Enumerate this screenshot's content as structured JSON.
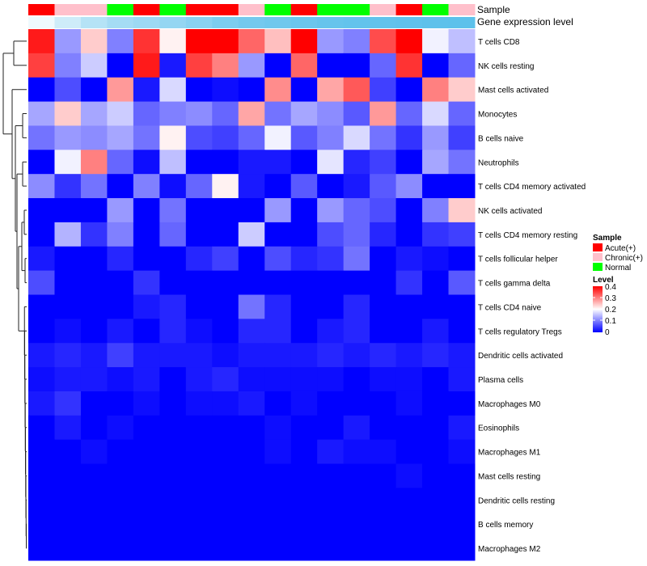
{
  "chart_data": {
    "type": "heatmap",
    "title": "",
    "annotation_tracks": [
      "Sample",
      "Gene expression level"
    ],
    "sample_groups": [
      "Acute(+)",
      "Chronic(+)",
      "Chronic(+)",
      "Normal",
      "Acute(+)",
      "Normal",
      "Acute(+)",
      "Acute(+)",
      "Chronic(+)",
      "Normal",
      "Acute(+)",
      "Normal",
      "Normal",
      "Chronic(+)",
      "Acute(+)",
      "Normal",
      "Chronic(+)"
    ],
    "expression_levels": [
      0.1,
      0.3,
      0.45,
      0.55,
      0.6,
      0.65,
      0.72,
      0.8,
      0.85,
      0.88,
      0.9,
      0.93,
      0.95,
      0.96,
      0.97,
      0.98,
      0.99
    ],
    "rows": [
      "T cells CD8",
      "NK cells resting",
      "Mast cells activated",
      "Monocytes",
      "B cells naive",
      "Neutrophils",
      "T cells CD4 memory activated",
      "NK cells activated",
      "T cells CD4 memory resting",
      "T cells follicular helper",
      "T cells gamma delta",
      "T cells CD4 naive",
      "T cells regulatory  Tregs",
      "Dendritic cells activated",
      "Plasma cells",
      "Macrophages M0",
      "Eosinophils",
      "Macrophages M1",
      "Mast cells resting",
      "Dendritic cells resting",
      "B cells memory",
      "Macrophages M2"
    ],
    "values": [
      [
        0.38,
        0.12,
        0.24,
        0.1,
        0.36,
        0.21,
        0.4,
        0.4,
        0.32,
        0.25,
        0.4,
        0.12,
        0.1,
        0.34,
        0.4,
        0.19,
        0.15
      ],
      [
        0.35,
        0.1,
        0.16,
        0.0,
        0.38,
        0.02,
        0.35,
        0.3,
        0.12,
        0.0,
        0.32,
        0.0,
        0.0,
        0.08,
        0.36,
        0.0,
        0.08
      ],
      [
        0.0,
        0.06,
        0.0,
        0.28,
        0.02,
        0.17,
        0.0,
        0.01,
        0.0,
        0.29,
        0.0,
        0.27,
        0.33,
        0.05,
        0.0,
        0.3,
        0.24
      ],
      [
        0.13,
        0.24,
        0.13,
        0.16,
        0.08,
        0.1,
        0.11,
        0.08,
        0.27,
        0.09,
        0.13,
        0.11,
        0.07,
        0.28,
        0.08,
        0.17,
        0.08
      ],
      [
        0.09,
        0.12,
        0.11,
        0.13,
        0.09,
        0.21,
        0.06,
        0.05,
        0.08,
        0.19,
        0.07,
        0.1,
        0.17,
        0.09,
        0.04,
        0.12,
        0.05
      ],
      [
        0.0,
        0.19,
        0.3,
        0.08,
        0.01,
        0.15,
        0.0,
        0.0,
        0.02,
        0.02,
        0.0,
        0.18,
        0.03,
        0.05,
        0.0,
        0.13,
        0.09
      ],
      [
        0.11,
        0.04,
        0.09,
        0.0,
        0.1,
        0.01,
        0.08,
        0.21,
        0.02,
        0.0,
        0.07,
        0.0,
        0.02,
        0.07,
        0.11,
        0.0,
        0.0
      ],
      [
        0.0,
        0.0,
        0.0,
        0.12,
        0.0,
        0.09,
        0.0,
        0.0,
        0.0,
        0.12,
        0.0,
        0.12,
        0.08,
        0.06,
        0.0,
        0.1,
        0.24
      ],
      [
        0.0,
        0.14,
        0.04,
        0.1,
        0.0,
        0.08,
        0.0,
        0.0,
        0.16,
        0.0,
        0.0,
        0.06,
        0.08,
        0.03,
        0.0,
        0.04,
        0.05
      ],
      [
        0.02,
        0.0,
        0.0,
        0.03,
        0.0,
        0.0,
        0.03,
        0.05,
        0.0,
        0.06,
        0.03,
        0.04,
        0.09,
        0.0,
        0.02,
        0.01,
        0.0
      ],
      [
        0.06,
        0.0,
        0.0,
        0.0,
        0.04,
        0.0,
        0.0,
        0.0,
        0.0,
        0.0,
        0.0,
        0.0,
        0.0,
        0.0,
        0.04,
        0.0,
        0.07
      ],
      [
        0.0,
        0.0,
        0.0,
        0.0,
        0.02,
        0.03,
        0.0,
        0.0,
        0.09,
        0.03,
        0.0,
        0.0,
        0.03,
        0.0,
        0.0,
        0.0,
        0.0
      ],
      [
        0.0,
        0.01,
        0.0,
        0.02,
        0.0,
        0.03,
        0.01,
        0.0,
        0.03,
        0.03,
        0.0,
        0.02,
        0.03,
        0.0,
        0.0,
        0.02,
        0.0
      ],
      [
        0.02,
        0.03,
        0.02,
        0.05,
        0.02,
        0.02,
        0.02,
        0.01,
        0.02,
        0.02,
        0.02,
        0.03,
        0.02,
        0.03,
        0.02,
        0.03,
        0.02
      ],
      [
        0.01,
        0.02,
        0.02,
        0.01,
        0.02,
        0.0,
        0.02,
        0.03,
        0.01,
        0.01,
        0.01,
        0.01,
        0.0,
        0.01,
        0.01,
        0.0,
        0.02
      ],
      [
        0.02,
        0.04,
        0.0,
        0.0,
        0.01,
        0.0,
        0.01,
        0.01,
        0.02,
        0.0,
        0.01,
        0.0,
        0.0,
        0.0,
        0.01,
        0.0,
        0.0
      ],
      [
        0.0,
        0.02,
        0.0,
        0.01,
        0.0,
        0.0,
        0.0,
        0.0,
        0.0,
        0.01,
        0.0,
        0.0,
        0.02,
        0.0,
        0.0,
        0.0,
        0.02
      ],
      [
        0.0,
        0.0,
        0.01,
        0.0,
        0.0,
        0.0,
        0.0,
        0.0,
        0.0,
        0.01,
        0.0,
        0.02,
        0.01,
        0.01,
        0.0,
        0.0,
        0.01
      ],
      [
        0.0,
        0.0,
        0.0,
        0.0,
        0.0,
        0.0,
        0.0,
        0.0,
        0.0,
        0.0,
        0.0,
        0.0,
        0.0,
        0.0,
        0.01,
        0.0,
        0.0
      ],
      [
        0.0,
        0.0,
        0.0,
        0.0,
        0.0,
        0.0,
        0.0,
        0.0,
        0.0,
        0.0,
        0.0,
        0.0,
        0.0,
        0.0,
        0.0,
        0.0,
        0.0
      ],
      [
        0.0,
        0.0,
        0.0,
        0.0,
        0.0,
        0.0,
        0.0,
        0.0,
        0.0,
        0.0,
        0.0,
        0.0,
        0.0,
        0.0,
        0.0,
        0.0,
        0.0
      ],
      [
        0.0,
        0.0,
        0.0,
        0.0,
        0.0,
        0.0,
        0.0,
        0.0,
        0.0,
        0.0,
        0.0,
        0.0,
        0.0,
        0.0,
        0.0,
        0.0,
        0.0
      ]
    ],
    "color_scale": {
      "min": 0,
      "mid": 0.2,
      "max": 0.4,
      "low_color": "#0000FF",
      "mid_color": "#FFFFFF",
      "high_color": "#FF0000"
    },
    "legend": {
      "sample_title": "Sample",
      "sample_entries": [
        {
          "label": "Acute(+)",
          "color": "#FF0000"
        },
        {
          "label": "Chronic(+)",
          "color": "#FFC0CB"
        },
        {
          "label": "Normal",
          "color": "#00FF00"
        }
      ],
      "level_title": "Level",
      "level_ticks": [
        "0.4",
        "0.3",
        "0.2",
        "0.1",
        "0"
      ],
      "placement": "right"
    },
    "expression_track_colors": {
      "low": "#FFFFFF",
      "high": "#5BC0EB"
    },
    "dendrogram": "row clustering (left)"
  }
}
